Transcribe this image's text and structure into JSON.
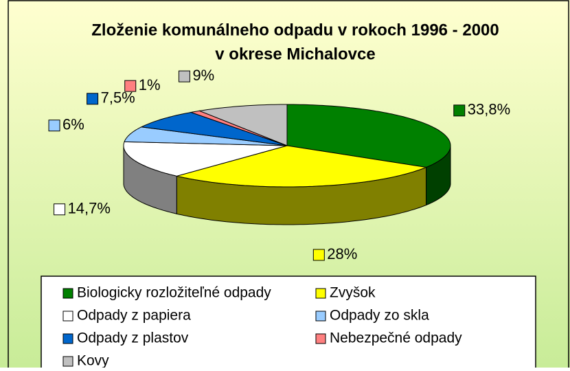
{
  "chart_data": {
    "type": "pie3d",
    "title": [
      "Zloženie komunálneho odpadu v rokoch 1996 - 2000",
      "v okrese Michalovce"
    ],
    "categories": [
      "Biologicky rozložiteľné odpady",
      "Zvyšok",
      "Odpady z papiera",
      "Odpady zo skla",
      "Odpady z plastov",
      "Nebezpečné odpady",
      "Kovy"
    ],
    "values": [
      33.8,
      28,
      14.7,
      6,
      7.5,
      1,
      9
    ],
    "value_labels": [
      "33,8%",
      "28%",
      "14,7%",
      "6%",
      "7,5%",
      "1%",
      "9%"
    ],
    "colors": [
      "#008000",
      "#ffff00",
      "#ffffff",
      "#99ccff",
      "#0066cc",
      "#ff8080",
      "#c0c0c0"
    ],
    "side_colors": [
      "#004000",
      "#808000",
      "#808080",
      "#4c6680",
      "#003366",
      "#804040",
      "#606060"
    ],
    "legend": "bottom"
  }
}
